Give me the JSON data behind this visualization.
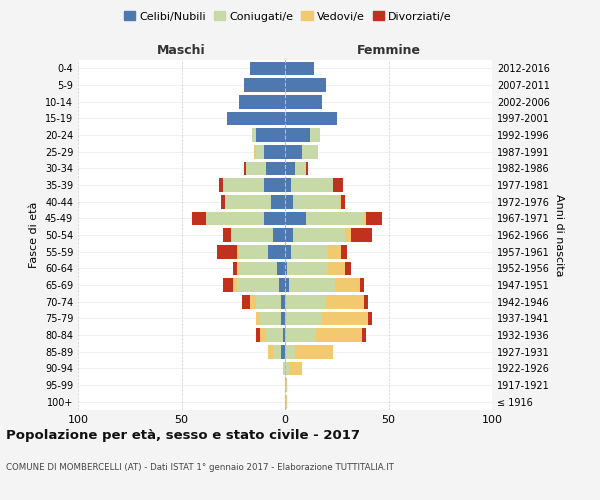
{
  "age_groups": [
    "100+",
    "95-99",
    "90-94",
    "85-89",
    "80-84",
    "75-79",
    "70-74",
    "65-69",
    "60-64",
    "55-59",
    "50-54",
    "45-49",
    "40-44",
    "35-39",
    "30-34",
    "25-29",
    "20-24",
    "15-19",
    "10-14",
    "5-9",
    "0-4"
  ],
  "birth_years": [
    "≤ 1916",
    "1917-1921",
    "1922-1926",
    "1927-1931",
    "1932-1936",
    "1937-1941",
    "1942-1946",
    "1947-1951",
    "1952-1956",
    "1957-1961",
    "1962-1966",
    "1967-1971",
    "1972-1976",
    "1977-1981",
    "1982-1986",
    "1987-1991",
    "1992-1996",
    "1997-2001",
    "2002-2006",
    "2007-2011",
    "2012-2016"
  ],
  "m_cel": [
    0,
    0,
    0,
    2,
    1,
    2,
    2,
    3,
    4,
    8,
    6,
    10,
    7,
    10,
    9,
    10,
    14,
    28,
    22,
    20,
    17
  ],
  "m_con": [
    0,
    0,
    1,
    4,
    8,
    10,
    12,
    20,
    18,
    14,
    20,
    28,
    22,
    20,
    10,
    4,
    2,
    0,
    0,
    0,
    0
  ],
  "m_ved": [
    0,
    0,
    0,
    2,
    3,
    2,
    3,
    2,
    1,
    1,
    0,
    0,
    0,
    0,
    0,
    1,
    0,
    0,
    0,
    0,
    0
  ],
  "m_div": [
    0,
    0,
    0,
    0,
    2,
    0,
    4,
    5,
    2,
    10,
    4,
    7,
    2,
    2,
    1,
    0,
    0,
    0,
    0,
    0,
    0
  ],
  "f_nub": [
    0,
    0,
    0,
    0,
    0,
    0,
    0,
    2,
    1,
    3,
    4,
    10,
    4,
    3,
    5,
    8,
    12,
    25,
    18,
    20,
    14
  ],
  "f_con": [
    0,
    0,
    2,
    5,
    15,
    18,
    20,
    22,
    20,
    18,
    25,
    28,
    22,
    20,
    5,
    8,
    5,
    0,
    0,
    0,
    0
  ],
  "f_ved": [
    1,
    1,
    6,
    18,
    22,
    22,
    18,
    12,
    8,
    6,
    3,
    1,
    1,
    0,
    0,
    0,
    0,
    0,
    0,
    0,
    0
  ],
  "f_div": [
    0,
    0,
    0,
    0,
    2,
    2,
    2,
    2,
    3,
    3,
    10,
    8,
    2,
    5,
    1,
    0,
    0,
    0,
    0,
    0,
    0
  ],
  "colors": {
    "celibi_nubili": "#4e78b0",
    "coniugati": "#c8d9a8",
    "vedovi": "#f2c96e",
    "divorziati": "#c0311e"
  },
  "title": "Popolazione per età, sesso e stato civile - 2017",
  "subtitle": "COMUNE DI MOMBERCELLI (AT) - Dati ISTAT 1° gennaio 2017 - Elaborazione TUTTITALIA.IT",
  "legend_labels": [
    "Celibi/Nubili",
    "Coniugati/e",
    "Vedovi/e",
    "Divorziati/e"
  ],
  "xlabel_left": "Maschi",
  "xlabel_right": "Femmine",
  "ylabel_left": "Fasce di età",
  "ylabel_right": "Anni di nascita",
  "bg_color": "#f4f4f4",
  "plot_bg": "#ffffff",
  "grid_color": "#cccccc"
}
